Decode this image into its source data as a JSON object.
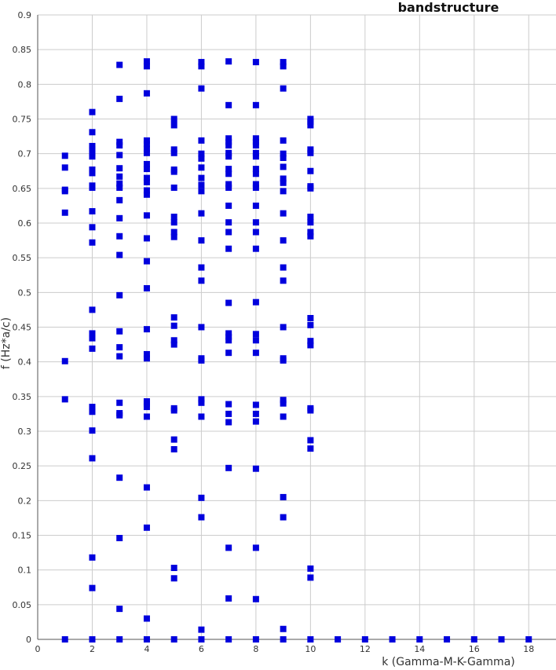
{
  "chart_data": {
    "type": "scatter",
    "title": "bandstructure",
    "xlabel": "k (Gamma-M-K-Gamma)",
    "ylabel": "f (Hz*a/c)",
    "xlim": [
      0,
      19
    ],
    "ylim": [
      0,
      0.9
    ],
    "xticks": [
      0,
      2,
      4,
      6,
      8,
      10,
      12,
      14,
      16,
      18
    ],
    "yticks": [
      0,
      0.05,
      0.1,
      0.15,
      0.2,
      0.25,
      0.3,
      0.35,
      0.4,
      0.45,
      0.5,
      0.55,
      0.6,
      0.65,
      0.7,
      0.75,
      0.8,
      0.85,
      0.9
    ],
    "grid": true,
    "legend": "none",
    "marker_color": "#0000dd",
    "marker": "square",
    "points": [
      {
        "x": 1,
        "y": [
          0,
          0.346,
          0.401,
          0.615,
          0.646,
          0.648,
          0.68,
          0.697
        ]
      },
      {
        "x": 2,
        "y": [
          0,
          0.074,
          0.118,
          0.261,
          0.301,
          0.328,
          0.335,
          0.419,
          0.434,
          0.441,
          0.475,
          0.572,
          0.594,
          0.617,
          0.651,
          0.654,
          0.672,
          0.677,
          0.696,
          0.701,
          0.706,
          0.711,
          0.731,
          0.76
        ]
      },
      {
        "x": 3,
        "y": [
          0,
          0.044,
          0.146,
          0.233,
          0.323,
          0.326,
          0.341,
          0.408,
          0.421,
          0.444,
          0.496,
          0.554,
          0.581,
          0.607,
          0.633,
          0.651,
          0.657,
          0.667,
          0.679,
          0.698,
          0.712,
          0.717,
          0.779,
          0.828
        ]
      },
      {
        "x": 4,
        "y": [
          0,
          0.03,
          0.161,
          0.219,
          0.321,
          0.335,
          0.34,
          0.343,
          0.405,
          0.411,
          0.447,
          0.506,
          0.545,
          0.578,
          0.611,
          0.641,
          0.647,
          0.659,
          0.665,
          0.678,
          0.685,
          0.701,
          0.707,
          0.714,
          0.719,
          0.787,
          0.826,
          0.833
        ]
      },
      {
        "x": 5,
        "y": [
          0,
          0.088,
          0.103,
          0.274,
          0.288,
          0.33,
          0.333,
          0.425,
          0.431,
          0.452,
          0.464,
          0.58,
          0.587,
          0.601,
          0.609,
          0.651,
          0.674,
          0.677,
          0.701,
          0.706,
          0.741,
          0.75
        ]
      },
      {
        "x": 6,
        "y": [
          0,
          0.014,
          0.176,
          0.204,
          0.321,
          0.341,
          0.346,
          0.402,
          0.405,
          0.45,
          0.517,
          0.536,
          0.575,
          0.614,
          0.646,
          0.655,
          0.665,
          0.68,
          0.693,
          0.7,
          0.719,
          0.794,
          0.826,
          0.832
        ]
      },
      {
        "x": 7,
        "y": [
          0,
          0.059,
          0.132,
          0.247,
          0.313,
          0.325,
          0.339,
          0.413,
          0.431,
          0.436,
          0.441,
          0.485,
          0.563,
          0.587,
          0.601,
          0.625,
          0.651,
          0.656,
          0.671,
          0.678,
          0.696,
          0.701,
          0.712,
          0.717,
          0.722,
          0.77,
          0.833
        ]
      },
      {
        "x": 8,
        "y": [
          0,
          0.058,
          0.132,
          0.246,
          0.314,
          0.325,
          0.338,
          0.413,
          0.431,
          0.44,
          0.486,
          0.563,
          0.587,
          0.601,
          0.625,
          0.651,
          0.656,
          0.671,
          0.678,
          0.696,
          0.701,
          0.712,
          0.717,
          0.722,
          0.77,
          0.832
        ]
      },
      {
        "x": 9,
        "y": [
          0,
          0.015,
          0.176,
          0.205,
          0.321,
          0.34,
          0.345,
          0.402,
          0.405,
          0.45,
          0.517,
          0.536,
          0.575,
          0.614,
          0.646,
          0.658,
          0.664,
          0.681,
          0.694,
          0.7,
          0.719,
          0.794,
          0.826,
          0.832
        ]
      },
      {
        "x": 10,
        "y": [
          0,
          0.089,
          0.102,
          0.275,
          0.287,
          0.33,
          0.333,
          0.424,
          0.43,
          0.453,
          0.463,
          0.581,
          0.587,
          0.601,
          0.609,
          0.65,
          0.653,
          0.675,
          0.701,
          0.706,
          0.741,
          0.746,
          0.75
        ]
      },
      {
        "x": 11,
        "y": [
          0
        ]
      },
      {
        "x": 12,
        "y": [
          0
        ]
      },
      {
        "x": 13,
        "y": [
          0
        ]
      },
      {
        "x": 14,
        "y": [
          0
        ]
      },
      {
        "x": 15,
        "y": [
          0
        ]
      },
      {
        "x": 16,
        "y": [
          0
        ]
      },
      {
        "x": 17,
        "y": [
          0
        ]
      },
      {
        "x": 18,
        "y": [
          0
        ]
      }
    ]
  }
}
